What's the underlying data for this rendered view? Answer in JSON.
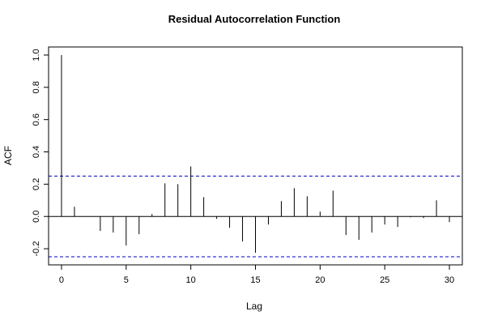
{
  "chart_data": {
    "type": "bar",
    "title": "Residual Autocorrelation Function",
    "xlabel": "Lag",
    "ylabel": "ACF",
    "xlim": [
      -1,
      31
    ],
    "ylim": [
      -0.3,
      1.05
    ],
    "xticks": [
      0,
      5,
      10,
      15,
      20,
      25,
      30
    ],
    "yticks": [
      -0.2,
      0.0,
      0.2,
      0.4,
      0.6,
      0.8,
      1.0
    ],
    "xtick_labels": [
      "0",
      "5",
      "10",
      "15",
      "20",
      "25",
      "30"
    ],
    "ytick_labels": [
      "-0.2",
      "0.0",
      "0.2",
      "0.4",
      "0.6",
      "0.8",
      "1.0"
    ],
    "lags": [
      0,
      1,
      2,
      3,
      4,
      5,
      6,
      7,
      8,
      9,
      10,
      11,
      12,
      13,
      14,
      15,
      16,
      17,
      18,
      19,
      20,
      21,
      22,
      23,
      24,
      25,
      26,
      27,
      28,
      29,
      30
    ],
    "values": [
      1.0,
      0.06,
      0.0,
      -0.09,
      -0.1,
      -0.18,
      -0.11,
      0.015,
      0.205,
      0.2,
      0.31,
      0.12,
      -0.015,
      -0.07,
      -0.155,
      -0.225,
      -0.05,
      0.095,
      0.175,
      0.125,
      0.03,
      0.16,
      -0.115,
      -0.145,
      -0.1,
      -0.05,
      -0.065,
      -0.005,
      -0.01,
      0.1,
      -0.035
    ],
    "confidence_band": 0.25,
    "band_color": "#0000cc",
    "grid": false
  }
}
